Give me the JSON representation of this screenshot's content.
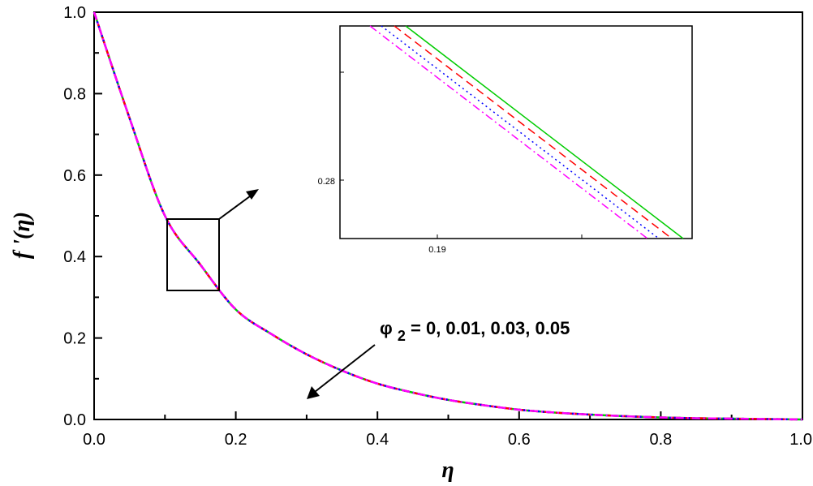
{
  "chart_data": {
    "type": "line",
    "title": "",
    "xlabel": "η",
    "ylabel": "f '(η)",
    "xlim": [
      0,
      1
    ],
    "ylim": [
      0,
      1
    ],
    "xticks": [
      0,
      0.2,
      0.4,
      0.6,
      0.8,
      1
    ],
    "yticks": [
      0,
      0.2,
      0.4,
      0.6,
      0.8,
      1
    ],
    "xtick_labels": [
      "0.0",
      "0.2",
      "0.4",
      "0.6",
      "0.8",
      "1.0"
    ],
    "ytick_labels": [
      "0.0",
      "0.2",
      "0.4",
      "0.6",
      "0.8",
      "1.0"
    ],
    "grid": false,
    "x": [
      0,
      0.05,
      0.1,
      0.15,
      0.2,
      0.25,
      0.3,
      0.35,
      0.4,
      0.45,
      0.5,
      0.55,
      0.6,
      0.65,
      0.7,
      0.75,
      0.8,
      0.85,
      0.9,
      0.95,
      1.0
    ],
    "series": [
      {
        "color": "#00cc00",
        "dash": "solid",
        "values": [
          1.0,
          0.74,
          0.5,
          0.38,
          0.27,
          0.21,
          0.16,
          0.12,
          0.088,
          0.066,
          0.048,
          0.035,
          0.024,
          0.017,
          0.012,
          0.008,
          0.005,
          0.003,
          0.002,
          0.001,
          0.0
        ]
      },
      {
        "color": "#ff0000",
        "dash": "dashed",
        "values": [
          1.0,
          0.74,
          0.5,
          0.38,
          0.27,
          0.21,
          0.16,
          0.12,
          0.088,
          0.066,
          0.048,
          0.035,
          0.024,
          0.017,
          0.012,
          0.008,
          0.005,
          0.003,
          0.002,
          0.001,
          0.0
        ]
      },
      {
        "color": "#0000ff",
        "dash": "dotted",
        "values": [
          1.0,
          0.74,
          0.5,
          0.38,
          0.27,
          0.21,
          0.16,
          0.12,
          0.088,
          0.066,
          0.048,
          0.035,
          0.024,
          0.017,
          0.012,
          0.008,
          0.005,
          0.003,
          0.002,
          0.001,
          0.0
        ]
      },
      {
        "color": "#ff00ff",
        "dash": "dashdot",
        "values": [
          1.0,
          0.74,
          0.5,
          0.38,
          0.27,
          0.21,
          0.16,
          0.12,
          0.088,
          0.066,
          0.048,
          0.035,
          0.024,
          0.017,
          0.012,
          0.008,
          0.005,
          0.003,
          0.002,
          0.001,
          0.0
        ]
      }
    ],
    "zoom_box": {
      "x": [
        0.1,
        0.175
      ],
      "y": [
        0.31,
        0.49
      ]
    },
    "annotation": {
      "symbol": "φ",
      "subscript": "2",
      "text": " = 0, 0.01, 0.03, 0.05"
    },
    "inset": {
      "xtick_labels": [
        "0.19"
      ],
      "ytick_labels": [
        "0.28"
      ]
    }
  }
}
